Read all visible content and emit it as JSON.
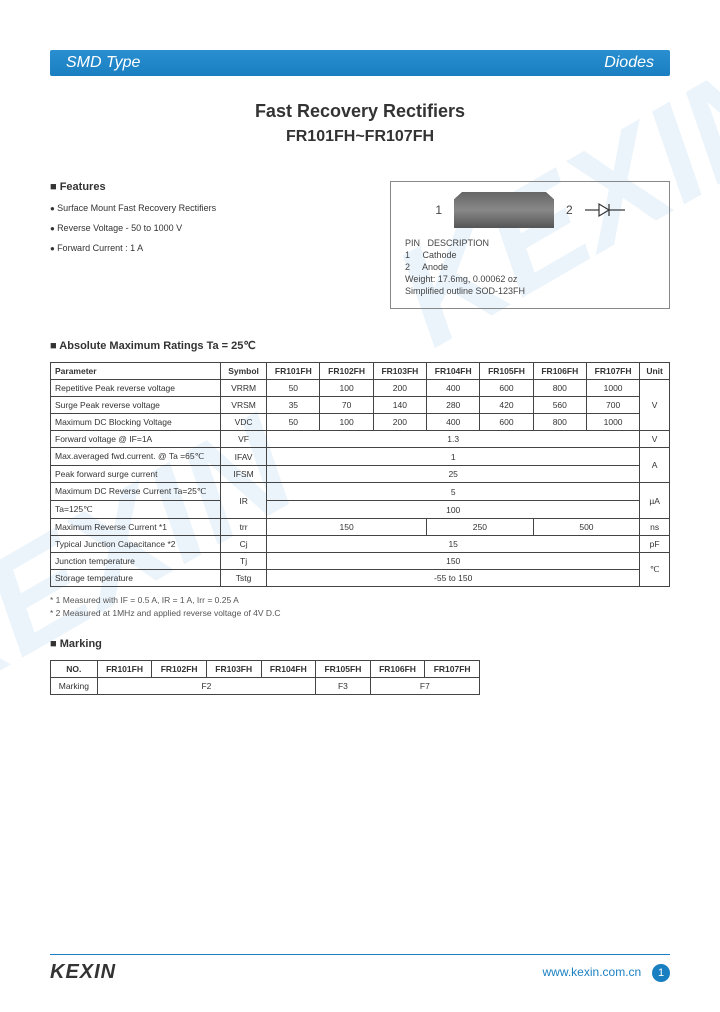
{
  "header": {
    "left": "SMD Type",
    "right": "Diodes"
  },
  "title": {
    "line1": "Fast Recovery Rectifiers",
    "line2": "FR101FH~FR107FH"
  },
  "features": {
    "heading": "Features",
    "items": [
      "Surface Mount Fast Recovery Rectifiers",
      "Reverse Voltage - 50 to 1000 V",
      "Forward Current : 1 A"
    ]
  },
  "package": {
    "pin1": "1",
    "pin2": "2",
    "desc_head": "PIN   DESCRIPTION",
    "desc1": "1     Cathode",
    "desc2": "2     Anode",
    "weight": "Weight:  17.6mg,  0.00062 oz",
    "outline": "Simplified outline SOD-123FH"
  },
  "ratings": {
    "heading": "Absolute Maximum Ratings Ta = 25℃",
    "columns": [
      "Parameter",
      "Symbol",
      "FR101FH",
      "FR102FH",
      "FR103FH",
      "FR104FH",
      "FR105FH",
      "FR106FH",
      "FR107FH",
      "Unit"
    ],
    "rows": [
      {
        "param": "Repetitive Peak reverse voltage",
        "sym": "VRRM",
        "vals": [
          "50",
          "100",
          "200",
          "400",
          "600",
          "800",
          "1000"
        ],
        "unit": "V",
        "unitSpan": 3
      },
      {
        "param": "Surge Peak reverse voltage",
        "sym": "VRSM",
        "vals": [
          "35",
          "70",
          "140",
          "280",
          "420",
          "560",
          "700"
        ]
      },
      {
        "param": "Maximum DC Blocking Voltage",
        "sym": "VDC",
        "vals": [
          "50",
          "100",
          "200",
          "400",
          "600",
          "800",
          "1000"
        ]
      },
      {
        "param": "Forward voltage   @ IF=1A",
        "sym": "VF",
        "merged": "1.3",
        "unit": "V"
      },
      {
        "param": "Max.averaged fwd.current.  @ Ta =65℃",
        "sym": "IFAV",
        "merged": "1",
        "unit": "A",
        "unitSpan": 2
      },
      {
        "param": "Peak forward surge current",
        "sym": "IFSM",
        "merged": "25"
      },
      {
        "param": "Maximum DC Reverse Current   Ta=25℃",
        "sym": "IR",
        "symSpan": 2,
        "merged": "5",
        "unit": "µA",
        "unitSpan": 2
      },
      {
        "param": "Ta=125℃",
        "merged": "100"
      },
      {
        "param": "Maximum Reverse Current   *1",
        "sym": "trr",
        "grp": [
          {
            "span": 3,
            "val": "150"
          },
          {
            "span": 2,
            "val": "250"
          },
          {
            "span": 2,
            "val": "500"
          }
        ],
        "unit": "ns"
      },
      {
        "param": "Typical Junction Capacitance   *2",
        "sym": "Cj",
        "merged": "15",
        "unit": "pF"
      },
      {
        "param": "Junction temperature",
        "sym": "Tj",
        "merged": "150",
        "unit": "℃",
        "unitSpan": 2
      },
      {
        "param": "Storage temperature",
        "sym": "Tstg",
        "merged": "-55 to 150"
      }
    ]
  },
  "notes": {
    "n1": "* 1 Measured with IF = 0.5 A, IR = 1 A, Irr = 0.25 A",
    "n2": "* 2  Measured at 1MHz and applied reverse voltage of 4V D.C"
  },
  "marking": {
    "heading": "Marking",
    "cols": [
      "NO.",
      "FR101FH",
      "FR102FH",
      "FR103FH",
      "FR104FH",
      "FR105FH",
      "FR106FH",
      "FR107FH"
    ],
    "row_label": "Marking",
    "groups": [
      {
        "span": 4,
        "val": "F2"
      },
      {
        "span": 1,
        "val": "F3"
      },
      {
        "span": 2,
        "val": "F7"
      }
    ]
  },
  "footer": {
    "logo": "KEXIN",
    "url": "www.kexin.com.cn",
    "page": "1"
  },
  "colors": {
    "brand": "#1a7fc0",
    "watermark": "rgba(0,120,200,0.08)"
  }
}
